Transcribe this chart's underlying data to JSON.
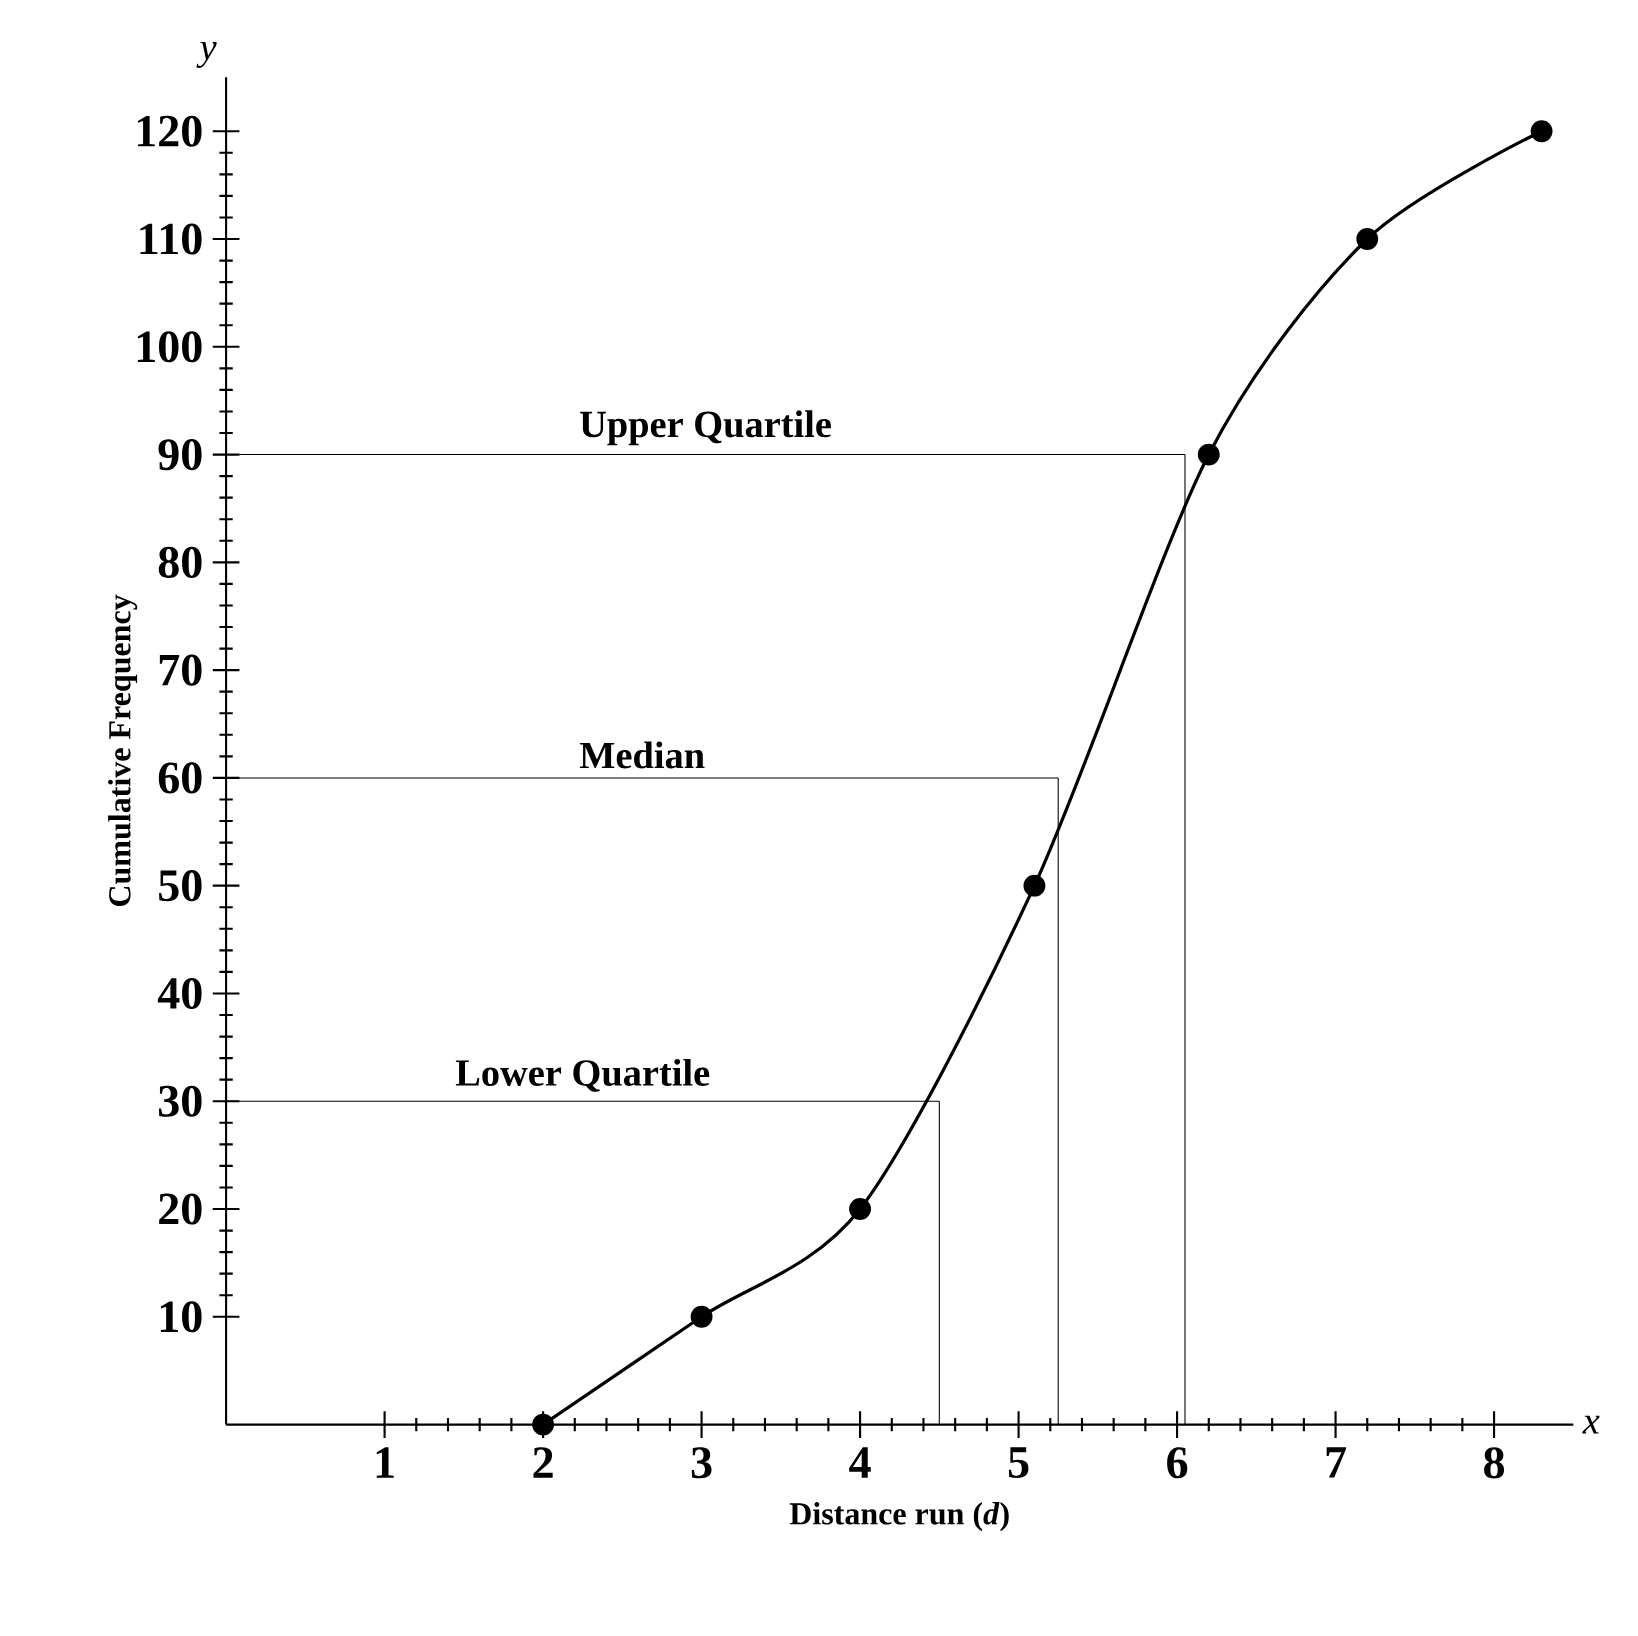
{
  "chart_data": {
    "type": "line",
    "xlabel": "Distance run (*d*)",
    "ylabel": "Cumulative Frequency",
    "x": [
      2,
      3,
      4,
      5.1,
      6.2,
      7.2,
      8.3
    ],
    "series": [
      {
        "color": "#000000",
        "values": [
          0,
          10,
          20,
          50,
          90,
          110,
          120
        ]
      }
    ],
    "xlim": [
      0,
      8.5
    ],
    "ylim": [
      0,
      125
    ],
    "xticks": [
      1,
      2,
      3,
      4,
      5,
      6,
      7,
      8
    ],
    "yticks": [
      10,
      20,
      30,
      40,
      50,
      60,
      70,
      80,
      90,
      100,
      110,
      120
    ],
    "ref_lines": [
      {
        "axis": "y",
        "value": 30,
        "label": "Lower Quartile"
      },
      {
        "axis": "y",
        "value": 60,
        "label": "Median"
      },
      {
        "axis": "y",
        "value": 90,
        "label": "Upper Quartile"
      },
      {
        "axis": "x",
        "value": 4.5
      },
      {
        "axis": "x",
        "value": 5.25
      },
      {
        "axis": "x",
        "value": 6.05
      }
    ],
    "annotations": [
      "x",
      "y"
    ],
    "marker": "circle",
    "line_style": "solid",
    "grid": false
  }
}
